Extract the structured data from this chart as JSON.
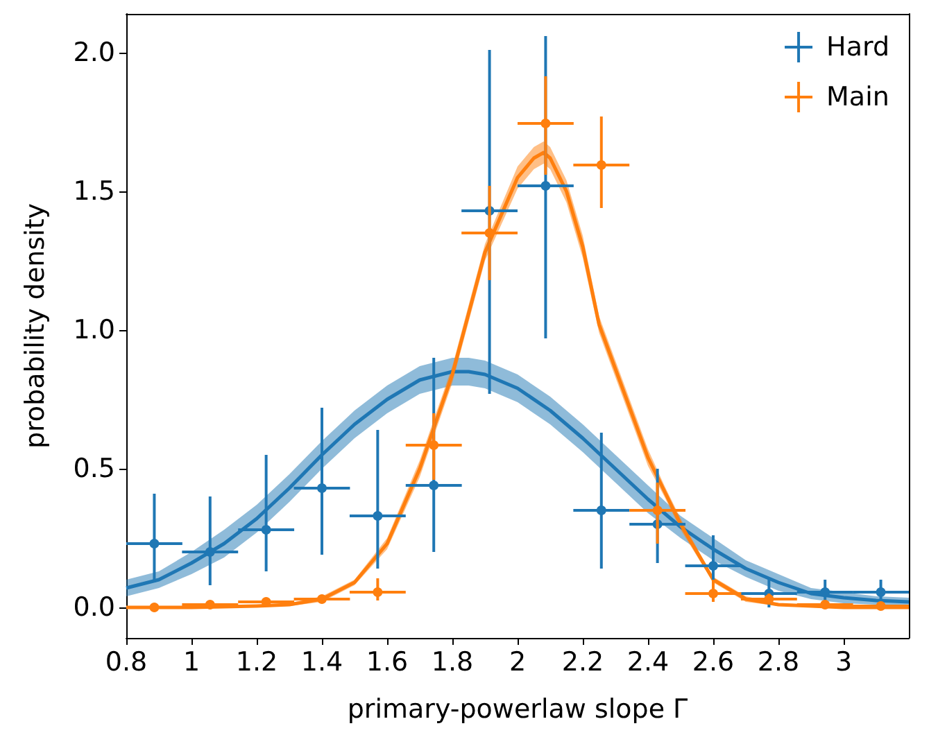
{
  "chart_data": {
    "type": "scatter",
    "xlabel": "primary-powerlaw slope Γ",
    "ylabel": "probability density",
    "xlim": [
      0.8,
      3.2
    ],
    "ylim": [
      -0.11,
      2.14
    ],
    "xticks": [
      {
        "value": 0.8,
        "label": "0.8"
      },
      {
        "value": 1,
        "label": "1"
      },
      {
        "value": 1.2,
        "label": "1.2"
      },
      {
        "value": 1.4,
        "label": "1.4"
      },
      {
        "value": 1.6,
        "label": "1.6"
      },
      {
        "value": 1.8,
        "label": "1.8"
      },
      {
        "value": 2,
        "label": "2"
      },
      {
        "value": 2.2,
        "label": "2.2"
      },
      {
        "value": 2.4,
        "label": "2.4"
      },
      {
        "value": 2.6,
        "label": "2.6"
      },
      {
        "value": 2.8,
        "label": "2.8"
      },
      {
        "value": 3,
        "label": "3"
      }
    ],
    "yticks": [
      {
        "value": 0,
        "label": "0.0"
      },
      0.5,
      {
        "value": 1,
        "label": "1.0"
      },
      1.5,
      {
        "value": 2,
        "label": "2.0"
      }
    ],
    "grid": false,
    "legend": "top right",
    "marker": "circle",
    "series": [
      {
        "name": "Hard",
        "color": "#1f77b4",
        "x": [
          0.886,
          1.057,
          1.229,
          1.4,
          1.571,
          1.743,
          1.914,
          2.086,
          2.257,
          2.429,
          2.6,
          2.771,
          2.943,
          3.114
        ],
        "values": [
          0.23,
          0.2,
          0.28,
          0.43,
          0.33,
          0.44,
          1.43,
          1.52,
          0.35,
          0.3,
          0.15,
          0.05,
          0.055,
          0.055
        ],
        "errors": [
          [
            0.09,
            0.41
          ],
          [
            0.08,
            0.4
          ],
          [
            0.13,
            0.55
          ],
          [
            0.19,
            0.72
          ],
          [
            0.14,
            0.64
          ],
          [
            0.2,
            0.9
          ],
          [
            0.77,
            2.01
          ],
          [
            0.97,
            2.06
          ],
          [
            0.14,
            0.63
          ],
          [
            0.16,
            0.5
          ],
          [
            0.06,
            0.26
          ],
          [
            0.0,
            0.1
          ],
          [
            0.01,
            0.1
          ],
          [
            0.01,
            0.1
          ]
        ],
        "xerrors": [
          0.086,
          0.086,
          0.086,
          0.086,
          0.086,
          0.086,
          0.086,
          0.086,
          0.086,
          0.086,
          0.086,
          0.086,
          0.086,
          0.086
        ]
      },
      {
        "name": "Main",
        "color": "#ff7f0e",
        "x": [
          0.886,
          1.057,
          1.229,
          1.4,
          1.571,
          1.743,
          1.914,
          2.086,
          2.257,
          2.429,
          2.6,
          2.771,
          2.943,
          3.114
        ],
        "values": [
          0.0,
          0.01,
          0.02,
          0.03,
          0.055,
          0.585,
          1.35,
          1.745,
          1.595,
          0.35,
          0.05,
          0.03,
          0.01,
          0.005
        ],
        "errors": [
          [
            0.0,
            0.01
          ],
          [
            0.0,
            0.02
          ],
          [
            0.01,
            0.03
          ],
          [
            0.02,
            0.04
          ],
          [
            0.025,
            0.105
          ],
          [
            0.46,
            0.7
          ],
          [
            1.18,
            1.52
          ],
          [
            1.56,
            1.915
          ],
          [
            1.44,
            1.77
          ],
          [
            0.23,
            0.45
          ],
          [
            0.02,
            0.1
          ],
          [
            0.01,
            0.05
          ],
          [
            0.0,
            0.02
          ],
          [
            0.0,
            0.01
          ]
        ],
        "xerrors": [
          0.086,
          0.086,
          0.086,
          0.086,
          0.086,
          0.086,
          0.086,
          0.086,
          0.086,
          0.086,
          0.086,
          0.086,
          0.086,
          0.086
        ]
      },
      {
        "type": "line",
        "marker": "none",
        "color": "#1f77b4",
        "x": [
          0.8,
          0.9,
          1.0,
          1.1,
          1.2,
          1.3,
          1.4,
          1.5,
          1.6,
          1.7,
          1.8,
          1.85,
          1.9,
          2.0,
          2.1,
          2.2,
          2.3,
          2.4,
          2.5,
          2.6,
          2.7,
          2.8,
          2.9,
          3.0,
          3.1,
          3.2
        ],
        "values": [
          0.07,
          0.1,
          0.16,
          0.23,
          0.32,
          0.43,
          0.55,
          0.66,
          0.75,
          0.82,
          0.85,
          0.85,
          0.84,
          0.79,
          0.71,
          0.61,
          0.5,
          0.39,
          0.29,
          0.21,
          0.14,
          0.09,
          0.05,
          0.035,
          0.025,
          0.02
        ],
        "lower": [
          0.04,
          0.07,
          0.12,
          0.18,
          0.27,
          0.38,
          0.5,
          0.61,
          0.7,
          0.77,
          0.8,
          0.8,
          0.79,
          0.74,
          0.66,
          0.56,
          0.45,
          0.34,
          0.25,
          0.17,
          0.11,
          0.06,
          0.03,
          0.015,
          0.01,
          0.005
        ],
        "upper": [
          0.1,
          0.13,
          0.2,
          0.28,
          0.37,
          0.48,
          0.6,
          0.71,
          0.8,
          0.87,
          0.9,
          0.9,
          0.89,
          0.84,
          0.76,
          0.66,
          0.55,
          0.44,
          0.33,
          0.25,
          0.17,
          0.12,
          0.07,
          0.055,
          0.04,
          0.035
        ]
      },
      {
        "type": "line",
        "marker": "none",
        "color": "#ff7f0e",
        "x": [
          0.8,
          1.0,
          1.2,
          1.3,
          1.4,
          1.5,
          1.6,
          1.7,
          1.8,
          1.9,
          2.0,
          2.05,
          2.08,
          2.1,
          2.15,
          2.2,
          2.25,
          2.3,
          2.35,
          2.4,
          2.45,
          2.5,
          2.6,
          2.7,
          2.8,
          3.0,
          3.2
        ],
        "values": [
          0.0,
          0.0,
          0.005,
          0.01,
          0.03,
          0.09,
          0.23,
          0.5,
          0.84,
          1.28,
          1.55,
          1.62,
          1.64,
          1.62,
          1.5,
          1.3,
          1.02,
          0.86,
          0.7,
          0.54,
          0.42,
          0.3,
          0.1,
          0.03,
          0.01,
          0.0,
          0.0
        ],
        "lower": [
          0.0,
          0.0,
          0.0,
          0.005,
          0.02,
          0.08,
          0.21,
          0.47,
          0.81,
          1.25,
          1.51,
          1.58,
          1.6,
          1.58,
          1.46,
          1.26,
          0.99,
          0.83,
          0.67,
          0.51,
          0.4,
          0.28,
          0.09,
          0.02,
          0.005,
          0.0,
          0.0
        ],
        "upper": [
          0.005,
          0.005,
          0.01,
          0.015,
          0.04,
          0.1,
          0.25,
          0.53,
          0.87,
          1.31,
          1.59,
          1.66,
          1.68,
          1.66,
          1.54,
          1.34,
          1.05,
          0.89,
          0.73,
          0.57,
          0.44,
          0.32,
          0.11,
          0.04,
          0.015,
          0.005,
          0.005
        ]
      }
    ]
  }
}
